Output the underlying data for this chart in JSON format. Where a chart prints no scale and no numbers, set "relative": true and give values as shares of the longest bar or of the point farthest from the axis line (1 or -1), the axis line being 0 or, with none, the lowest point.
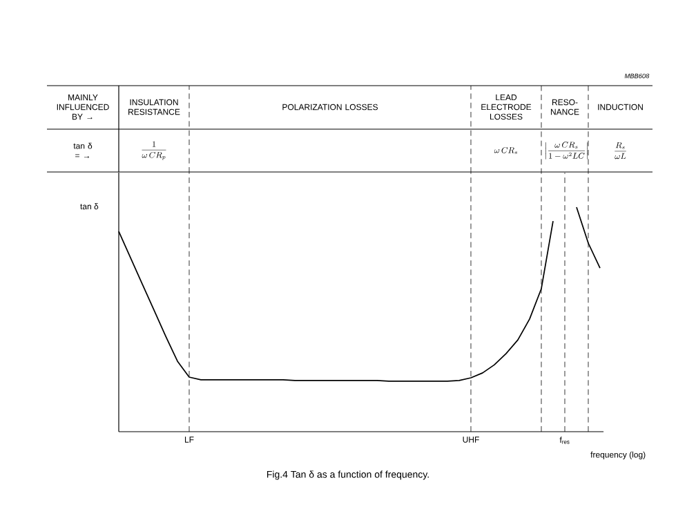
{
  "chart_data": {
    "type": "line",
    "relative": true,
    "xlabel": "frequency (log)",
    "ylabel": "tan δ",
    "color": "#000000",
    "categories": [
      null,
      null,
      null,
      null,
      null,
      null,
      "LF",
      null,
      null,
      null,
      null,
      null,
      null,
      null,
      null,
      null,
      null,
      null,
      null,
      null,
      null,
      null,
      null,
      null,
      null,
      null,
      null,
      null,
      null,
      null,
      "UHF",
      null,
      null,
      null,
      null,
      null,
      null,
      null,
      "f$_{res}$",
      null,
      null,
      null
    ],
    "values": [
      0.892,
      0.775,
      0.658,
      0.542,
      0.425,
      0.314,
      0.243,
      0.231,
      0.231,
      0.231,
      0.231,
      0.231,
      0.231,
      0.231,
      0.231,
      0.228,
      0.228,
      0.228,
      0.228,
      0.228,
      0.228,
      0.228,
      0.228,
      0.225,
      0.225,
      0.225,
      0.225,
      0.225,
      0.225,
      0.228,
      0.24,
      0.262,
      0.298,
      0.348,
      0.409,
      0.502,
      0.637,
      0.938,
      null,
      1,
      0.84,
      0.729
    ],
    "grid": "x",
    "annotations": [
      "MAINLY INFLUENCED BY →",
      "INSULATION RESISTANCE",
      "POLARIZATION LOSSES",
      "LEAD ELECTRODE LOSSES",
      "RESO-NANCE",
      "INDUCTION",
      "tan δ = →",
      "\\frac{1}{\\omega\\,CR_{p}}",
      "\\omega\\,CR_{s}",
      "\\left|\\frac{\\omega\\,CR_{s}}{1-\\omega^{2}LC}\\right|",
      "\\frac{R_{s}}{\\omega L}",
      "*MBB608*",
      "Fig.4  Tan δ as a function of frequency."
    ]
  }
}
